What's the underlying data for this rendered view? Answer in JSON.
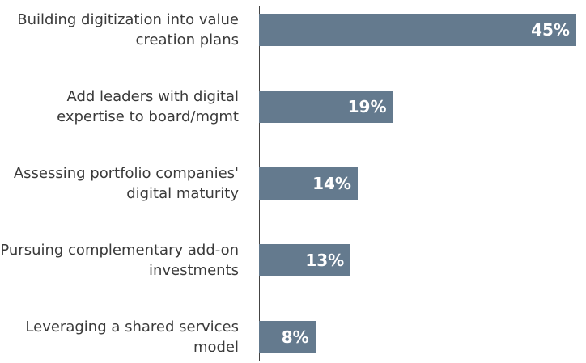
{
  "chart_data": {
    "type": "bar",
    "orientation": "horizontal",
    "categories": [
      "Building digitization into value creation plans",
      "Add leaders with digital expertise to board/mgmt",
      "Assessing portfolio companies' digital maturity",
      "Pursuing complementary add-on investments",
      "Leveraging a shared services model"
    ],
    "values": [
      45,
      19,
      14,
      13,
      8
    ],
    "value_labels": [
      "45%",
      "19%",
      "14%",
      "13%",
      "8%"
    ],
    "color": "#647a8e"
  }
}
